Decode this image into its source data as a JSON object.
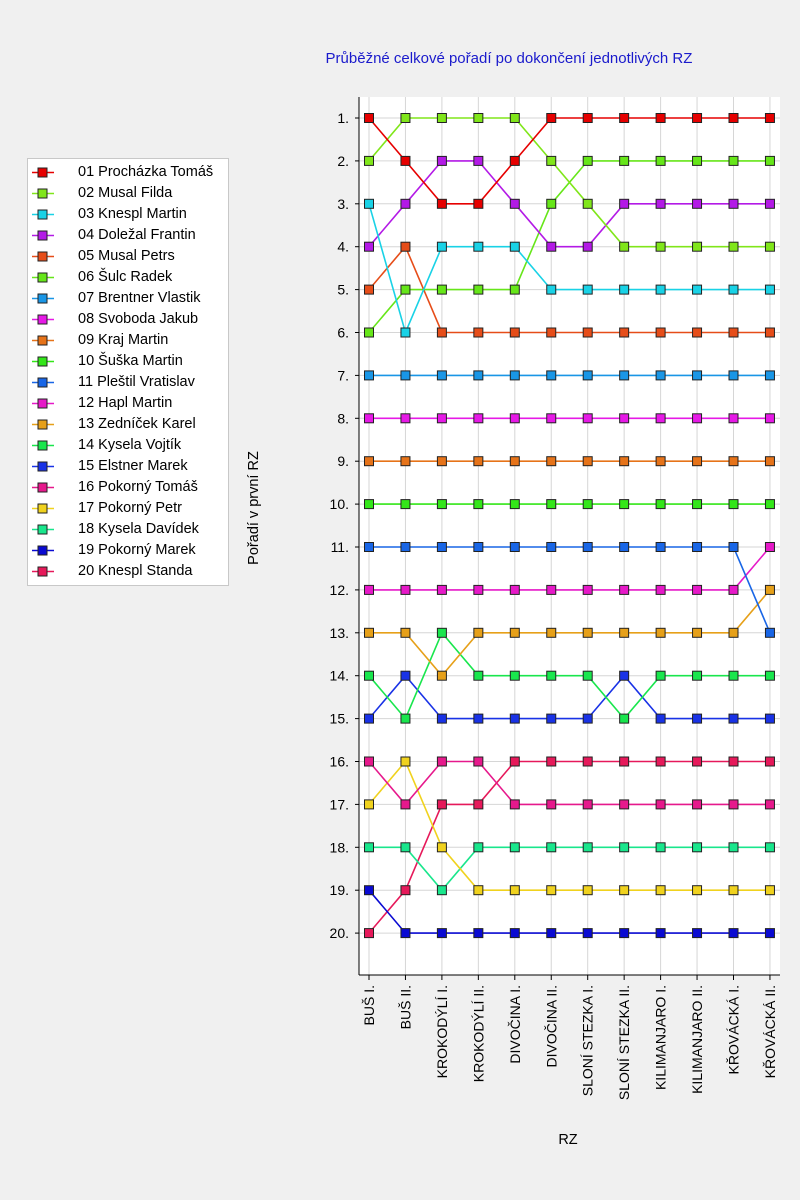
{
  "chart_data": {
    "type": "line",
    "title": "Průběžné celkové pořadí po dokončení jednotlivých RZ",
    "xlabel": "RZ",
    "ylabel": "Pořadí v první RZ",
    "categories": [
      "BUŠ I.",
      "BUŠ II.",
      "KROKODÝLÍ I.",
      "KROKODÝLÍ II.",
      "DIVOČINA I.",
      "DIVOČINA II.",
      "SLONÍ STEZKA I.",
      "SLONÍ STEZKA II.",
      "KILIMANJARO I.",
      "KILIMANJARO II.",
      "KŘOVÁCKÁ I.",
      "KŘOVÁCKÁ II."
    ],
    "ylim": [
      1,
      20
    ],
    "y_inverted": true,
    "ytick_labels": [
      "1.",
      "2.",
      "3.",
      "4.",
      "5.",
      "6.",
      "7.",
      "8.",
      "9.",
      "10.",
      "11.",
      "12.",
      "13.",
      "14.",
      "15.",
      "16.",
      "17.",
      "18.",
      "19.",
      "20."
    ],
    "grid": true,
    "legend_position": "left",
    "series": [
      {
        "name": "01 Procházka Tomáš",
        "color": "#e60000",
        "values": [
          1,
          2,
          3,
          3,
          2,
          1,
          1,
          1,
          1,
          1,
          1,
          1
        ]
      },
      {
        "name": "02 Musal Filda",
        "color": "#80e61a",
        "values": [
          2,
          1,
          1,
          1,
          1,
          2,
          3,
          4,
          4,
          4,
          4,
          4
        ]
      },
      {
        "name": "03 Knespl Martin",
        "color": "#19d2e6",
        "values": [
          3,
          6,
          4,
          4,
          4,
          5,
          5,
          5,
          5,
          5,
          5,
          5
        ]
      },
      {
        "name": "04 Doležal Frantin",
        "color": "#b31ae6",
        "values": [
          4,
          3,
          2,
          2,
          3,
          4,
          4,
          3,
          3,
          3,
          3,
          3
        ]
      },
      {
        "name": "05 Musal Petrs",
        "color": "#e64d19",
        "values": [
          5,
          4,
          6,
          6,
          6,
          6,
          6,
          6,
          6,
          6,
          6,
          6
        ]
      },
      {
        "name": "06 Šulc Radek",
        "color": "#66e619",
        "values": [
          6,
          5,
          5,
          5,
          5,
          3,
          2,
          2,
          2,
          2,
          2,
          2
        ]
      },
      {
        "name": "07 Brentner Vlastik",
        "color": "#1996e6",
        "values": [
          7,
          7,
          7,
          7,
          7,
          7,
          7,
          7,
          7,
          7,
          7,
          7
        ]
      },
      {
        "name": "08 Svoboda Jakub",
        "color": "#e619e6",
        "values": [
          8,
          8,
          8,
          8,
          8,
          8,
          8,
          8,
          8,
          8,
          8,
          8
        ]
      },
      {
        "name": "09 Kraj Martin",
        "color": "#e67319",
        "values": [
          9,
          9,
          9,
          9,
          9,
          9,
          9,
          9,
          9,
          9,
          9,
          9
        ]
      },
      {
        "name": "10 Šuška Martin",
        "color": "#33e619",
        "values": [
          10,
          10,
          10,
          10,
          10,
          10,
          10,
          10,
          10,
          10,
          10,
          10
        ]
      },
      {
        "name": "11 Pleštil Vratislav",
        "color": "#1966e6",
        "values": [
          11,
          11,
          11,
          11,
          11,
          11,
          11,
          11,
          11,
          11,
          11,
          13
        ]
      },
      {
        "name": "12 Hapl Martin",
        "color": "#e619c8",
        "values": [
          12,
          12,
          12,
          12,
          12,
          12,
          12,
          12,
          12,
          12,
          12,
          11
        ]
      },
      {
        "name": "13 Zedníček Karel",
        "color": "#e6a019",
        "values": [
          13,
          13,
          14,
          13,
          13,
          13,
          13,
          13,
          13,
          13,
          13,
          12
        ]
      },
      {
        "name": "14 Kysela Vojtík",
        "color": "#19e64d",
        "values": [
          14,
          15,
          13,
          14,
          14,
          14,
          14,
          15,
          14,
          14,
          14,
          14
        ]
      },
      {
        "name": "15 Elstner Marek",
        "color": "#1932e6",
        "values": [
          15,
          14,
          15,
          15,
          15,
          15,
          15,
          14,
          15,
          15,
          15,
          15
        ]
      },
      {
        "name": "16 Pokorný Tomáš",
        "color": "#e6198c",
        "values": [
          16,
          17,
          16,
          16,
          17,
          17,
          17,
          17,
          17,
          17,
          17,
          17
        ]
      },
      {
        "name": "17 Pokorný Petr",
        "color": "#f0d21e",
        "values": [
          17,
          16,
          18,
          19,
          19,
          19,
          19,
          19,
          19,
          19,
          19,
          19
        ]
      },
      {
        "name": "18 Kysela Davídek",
        "color": "#19e68c",
        "values": [
          18,
          18,
          19,
          18,
          18,
          18,
          18,
          18,
          18,
          18,
          18,
          18
        ]
      },
      {
        "name": "19 Pokorný Marek",
        "color": "#0a0ad2",
        "values": [
          19,
          20,
          20,
          20,
          20,
          20,
          20,
          20,
          20,
          20,
          20,
          20
        ]
      },
      {
        "name": "20 Knespl Standa",
        "color": "#e6195a",
        "values": [
          20,
          19,
          17,
          17,
          16,
          16,
          16,
          16,
          16,
          16,
          16,
          16
        ]
      }
    ]
  }
}
